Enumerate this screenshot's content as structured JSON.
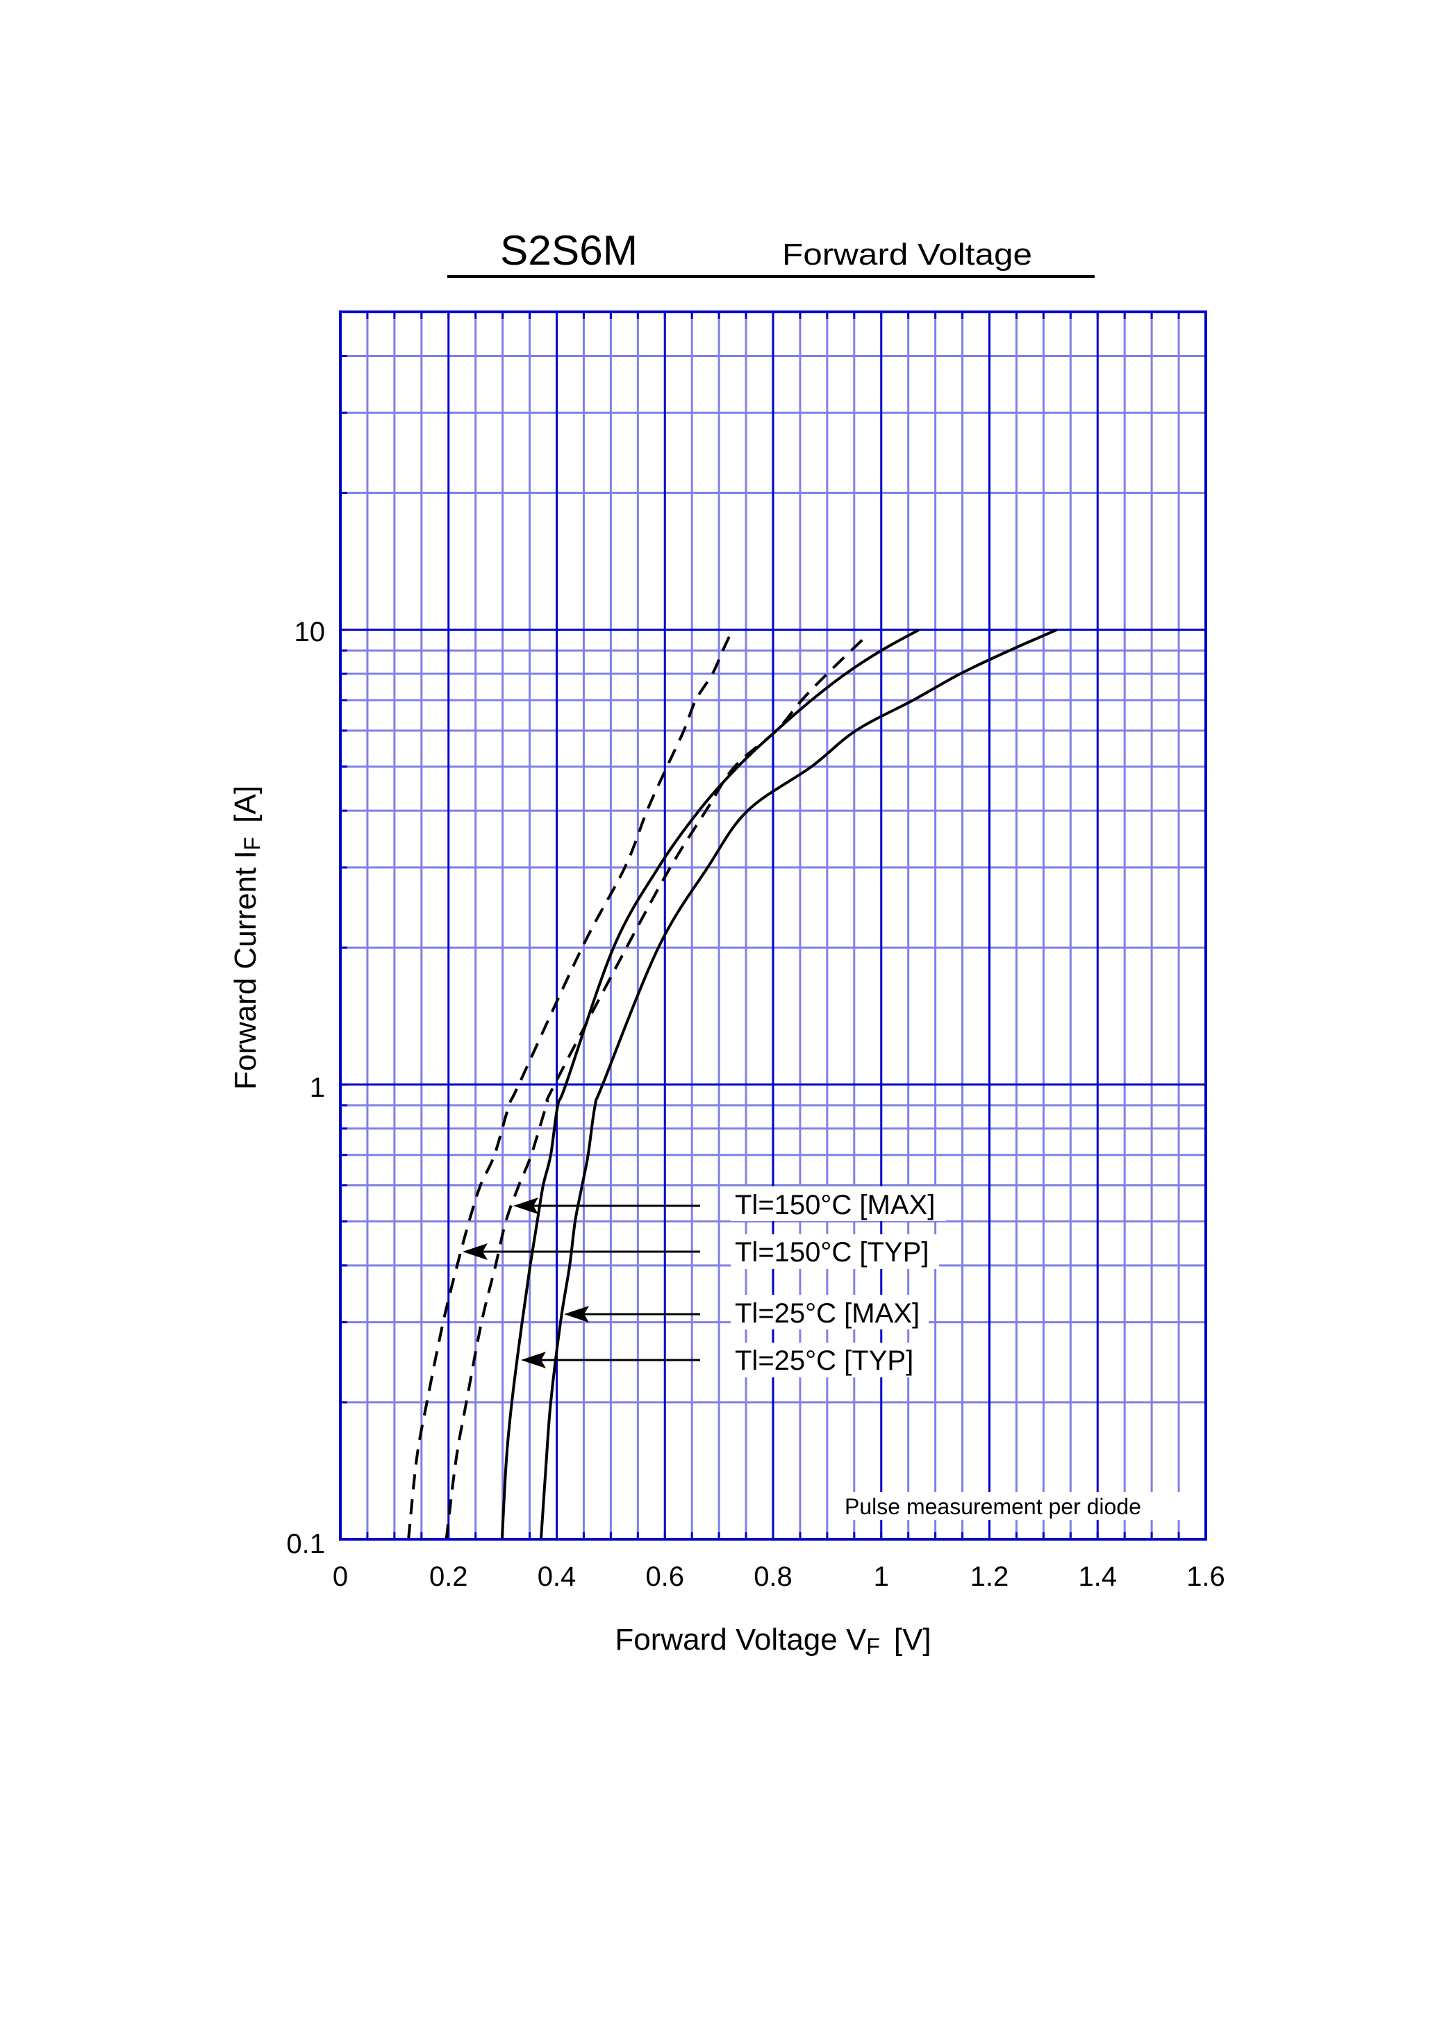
{
  "header": {
    "part_number": "S2S6M",
    "chart_name": "Forward Voltage"
  },
  "axes": {
    "x_title_main": "Forward Voltage  V",
    "x_title_sub": "F",
    "x_title_unit": "[V]",
    "y_title_main": "Forward Current  I",
    "y_title_sub": "F",
    "y_title_unit": "[A]",
    "x_ticks": [
      "0",
      "0.2",
      "0.4",
      "0.6",
      "0.8",
      "1",
      "1.2",
      "1.4",
      "1.6"
    ],
    "y_ticks": [
      "0.1",
      "1",
      "10"
    ]
  },
  "note": "Pulse measurement per diode",
  "legend": [
    {
      "label": "Tl=150°C [MAX]"
    },
    {
      "label": "Tl=150°C [TYP]"
    },
    {
      "label": "Tl=25°C [MAX]"
    },
    {
      "label": "Tl=25°C [TYP]"
    }
  ],
  "colors": {
    "major_grid": "#0000CC",
    "minor_grid": "#8080E6",
    "curve": "#000000"
  },
  "chart_data": {
    "type": "line",
    "title": "S2S6M  Forward Voltage",
    "xlabel": "Forward Voltage VF [V]",
    "ylabel": "Forward Current IF [A]",
    "xlim": [
      0,
      1.6
    ],
    "ylim": [
      0.1,
      50
    ],
    "xscale": "linear",
    "yscale": "log",
    "x_tick_labels": [
      "0",
      "0.2",
      "0.4",
      "0.6",
      "0.8",
      "1",
      "1.2",
      "1.4",
      "1.6"
    ],
    "y_tick_labels": [
      "0.1",
      "1",
      "10"
    ],
    "grid": true,
    "annotation": "Pulse measurement per diode",
    "series": [
      {
        "name": "Tl=150°C [TYP]",
        "style": "dashed",
        "points": [
          [
            0.126,
            0.1
          ],
          [
            0.141,
            0.15
          ],
          [
            0.16,
            0.2
          ],
          [
            0.19,
            0.3
          ],
          [
            0.216,
            0.4
          ],
          [
            0.238,
            0.5
          ],
          [
            0.259,
            0.6
          ],
          [
            0.285,
            0.7
          ],
          [
            0.312,
            0.9
          ],
          [
            0.33,
            1
          ],
          [
            0.447,
            2
          ],
          [
            0.526,
            3
          ],
          [
            0.567,
            4
          ],
          [
            0.604,
            5
          ],
          [
            0.635,
            6
          ],
          [
            0.657,
            7
          ],
          [
            0.688,
            8
          ],
          [
            0.707,
            9
          ],
          [
            0.725,
            10
          ]
        ]
      },
      {
        "name": "Tl=150°C [MAX]",
        "style": "dashed",
        "points": [
          [
            0.196,
            0.1
          ],
          [
            0.214,
            0.15
          ],
          [
            0.233,
            0.2
          ],
          [
            0.261,
            0.3
          ],
          [
            0.287,
            0.4
          ],
          [
            0.306,
            0.5
          ],
          [
            0.33,
            0.6
          ],
          [
            0.353,
            0.7
          ],
          [
            0.381,
            0.9
          ],
          [
            0.396,
            1
          ],
          [
            0.529,
            2
          ],
          [
            0.61,
            3
          ],
          [
            0.676,
            4
          ],
          [
            0.729,
            5
          ],
          [
            0.806,
            6
          ],
          [
            0.853,
            7
          ],
          [
            0.9,
            8
          ],
          [
            0.965,
            9.5
          ]
        ]
      },
      {
        "name": "Tl=25°C [TYP]",
        "style": "solid",
        "points": [
          [
            0.299,
            0.1
          ],
          [
            0.307,
            0.15
          ],
          [
            0.317,
            0.2
          ],
          [
            0.336,
            0.3
          ],
          [
            0.351,
            0.4
          ],
          [
            0.364,
            0.5
          ],
          [
            0.375,
            0.6
          ],
          [
            0.389,
            0.7
          ],
          [
            0.402,
            0.9
          ],
          [
            0.417,
            1
          ],
          [
            0.505,
            2
          ],
          [
            0.588,
            3
          ],
          [
            0.663,
            4
          ],
          [
            0.735,
            5
          ],
          [
            0.806,
            6
          ],
          [
            0.871,
            7
          ],
          [
            0.934,
            8
          ],
          [
            1.0,
            9
          ],
          [
            1.07,
            10
          ]
        ]
      },
      {
        "name": "Tl=25°C [MAX]",
        "style": "solid",
        "points": [
          [
            0.371,
            0.1
          ],
          [
            0.381,
            0.15
          ],
          [
            0.389,
            0.2
          ],
          [
            0.407,
            0.3
          ],
          [
            0.424,
            0.4
          ],
          [
            0.434,
            0.5
          ],
          [
            0.447,
            0.6
          ],
          [
            0.458,
            0.7
          ],
          [
            0.471,
            0.9
          ],
          [
            0.485,
            1
          ],
          [
            0.588,
            2
          ],
          [
            0.679,
            3
          ],
          [
            0.753,
            4
          ],
          [
            0.871,
            5
          ],
          [
            0.953,
            6
          ],
          [
            1.059,
            7
          ],
          [
            1.146,
            8
          ],
          [
            1.237,
            9
          ],
          [
            1.325,
            10
          ]
        ]
      }
    ],
    "legend_arrows": [
      {
        "label": "Tl=150°C [MAX]",
        "points_to_current": 0.52
      },
      {
        "label": "Tl=150°C [TYP]",
        "points_to_current": 0.41
      },
      {
        "label": "Tl=25°C [MAX]",
        "points_to_current": 0.3
      },
      {
        "label": "Tl=25°C [TYP]",
        "points_to_current": 0.24
      }
    ]
  }
}
